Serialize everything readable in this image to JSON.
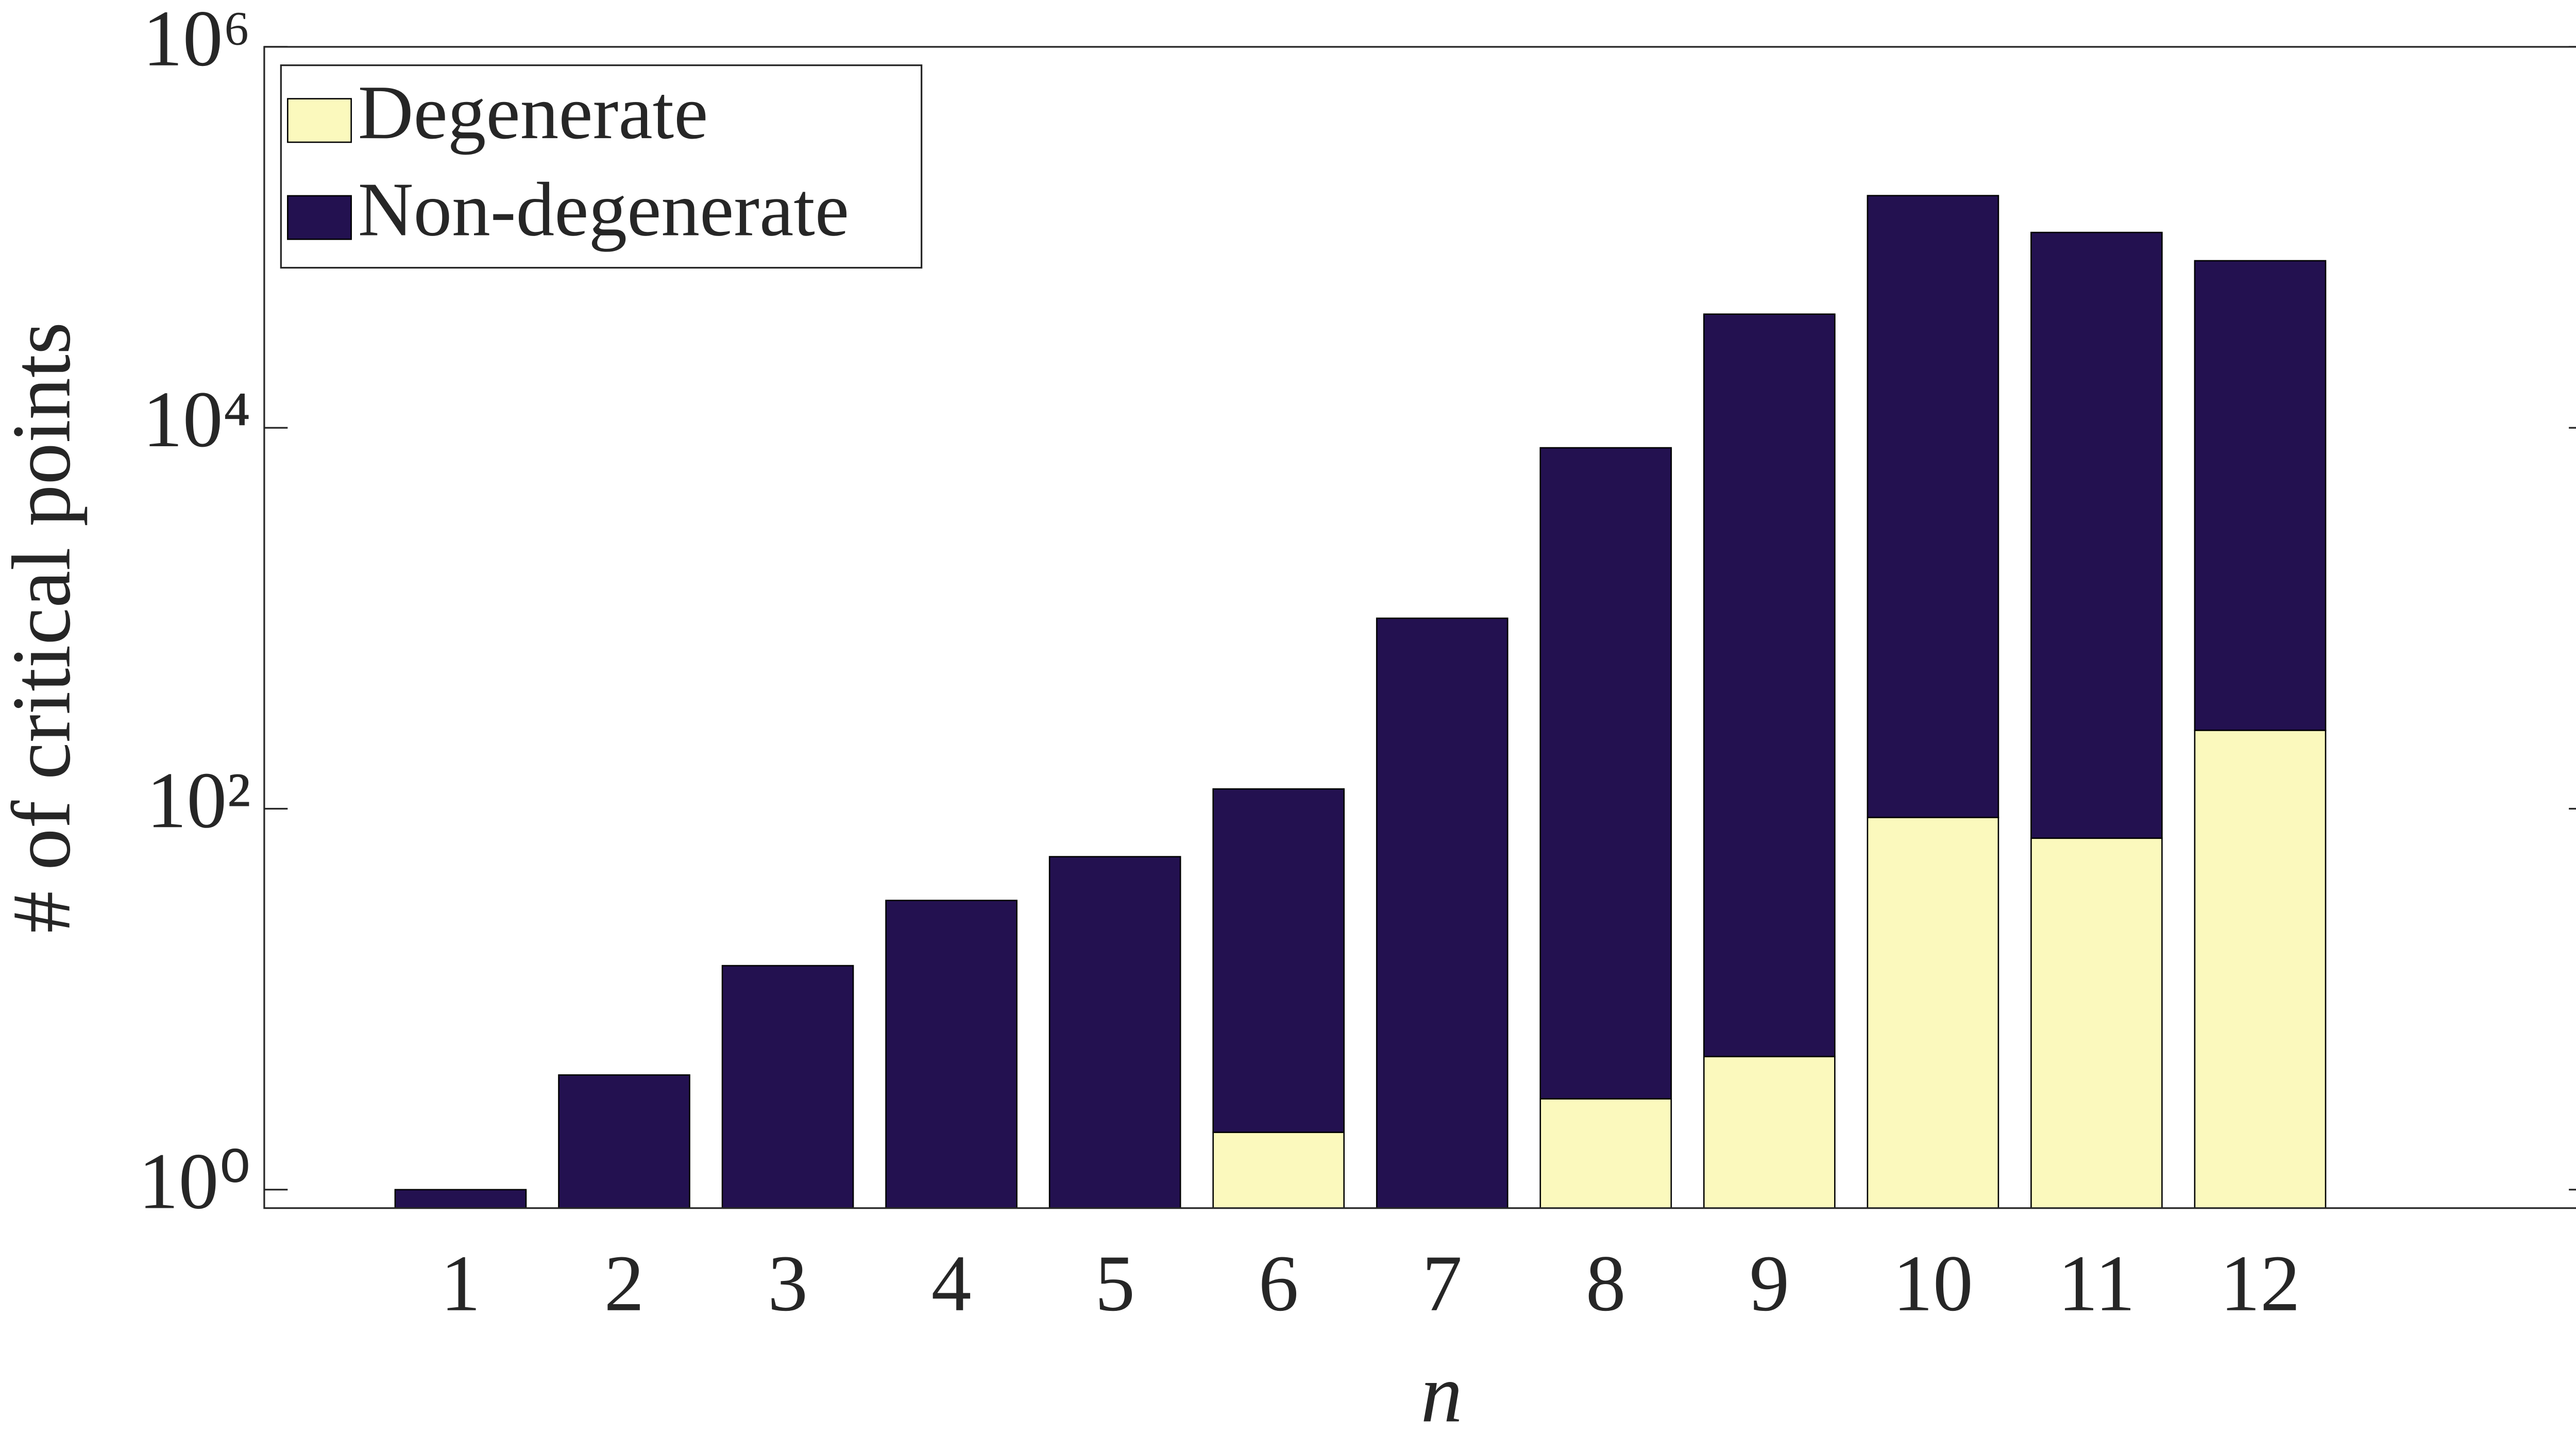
{
  "chart_data": {
    "type": "bar",
    "stacked": true,
    "log_scale": true,
    "y_label": "# of critical points",
    "x_label": "n",
    "categories": [
      "1",
      "2",
      "3",
      "4",
      "5",
      "6",
      "7",
      "8",
      "9",
      "10",
      "11",
      "12"
    ],
    "series": [
      {
        "name": "Degenerate",
        "color": "#fbf9bd",
        "values": [
          0,
          0,
          0,
          0,
          0,
          2,
          0,
          3,
          5,
          90,
          70,
          258
        ]
      },
      {
        "name": "Non-degenerate",
        "color": "#231150",
        "values": [
          1,
          4,
          15,
          33,
          56,
          125,
          1000,
          7850,
          39500,
          165500,
          106000,
          75100
        ]
      }
    ],
    "ylim": [
      0.8,
      1000000
    ],
    "yticks": [
      {
        "value": 1,
        "label": "10⁰"
      },
      {
        "value": 100,
        "label": "10²"
      },
      {
        "value": 10000,
        "label": "10⁴"
      },
      {
        "value": 1000000,
        "label": "10⁶"
      }
    ],
    "legend": "upper left"
  }
}
